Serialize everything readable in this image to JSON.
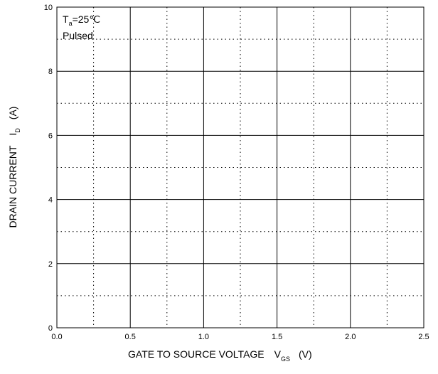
{
  "chart_data": {
    "type": "line",
    "title": "",
    "series": [],
    "xlim": [
      0.0,
      2.5
    ],
    "ylim": [
      0,
      10
    ],
    "x_major_ticks": [
      "0.0",
      "0.5",
      "1.0",
      "1.5",
      "2.0",
      "2.5"
    ],
    "y_major_ticks": [
      "0",
      "2",
      "4",
      "6",
      "8",
      "10"
    ],
    "x_minor_grid": [
      0.25,
      0.75,
      1.25,
      1.75,
      2.25
    ],
    "y_minor_grid": [
      1,
      3,
      5,
      7,
      9
    ],
    "grid": "on",
    "xlabel": {
      "text": "GATE TO SOURCE VOLTAGE",
      "symbol": "V",
      "subscript": "GS",
      "unit": "(V)"
    },
    "ylabel": {
      "text": "DRAIN CURRENT",
      "symbol": "I",
      "subscript": "D",
      "unit": "(A)"
    },
    "annotation": {
      "line1_symbol": "T",
      "line1_subscript": "a",
      "line1_value": "=25℃",
      "line2": "Pulsed"
    }
  }
}
